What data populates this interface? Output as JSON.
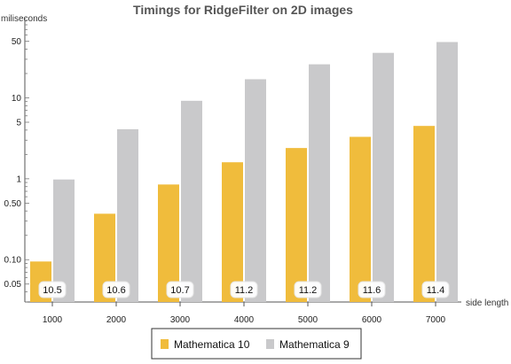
{
  "chart_data": {
    "type": "bar",
    "title": "Timings for RidgeFilter on 2D images",
    "ylabel": "miliseconds",
    "xlabel": "side length",
    "yscale": "log",
    "ylim": [
      0.03,
      80
    ],
    "categories": [
      "1000",
      "2000",
      "3000",
      "4000",
      "5000",
      "6000",
      "7000"
    ],
    "yticks": [
      {
        "value": 0.05,
        "label": "0.05"
      },
      {
        "value": 0.1,
        "label": "0.10"
      },
      {
        "value": 0.5,
        "label": "0.50"
      },
      {
        "value": 1,
        "label": "1"
      },
      {
        "value": 5,
        "label": "5"
      },
      {
        "value": 10,
        "label": "10"
      },
      {
        "value": 50,
        "label": "50"
      }
    ],
    "series": [
      {
        "name": "Mathematica 10",
        "color": "#f0bc3c",
        "values": [
          0.095,
          0.37,
          0.85,
          1.6,
          2.4,
          3.3,
          4.5
        ]
      },
      {
        "name": "Mathematica 9",
        "color": "#c9c9cb",
        "values": [
          0.98,
          4.1,
          9.2,
          17,
          26,
          36,
          49
        ]
      }
    ],
    "data_labels": [
      "10.5",
      "10.6",
      "10.7",
      "11.2",
      "11.2",
      "11.6",
      "11.4"
    ],
    "legend": "bottom"
  }
}
